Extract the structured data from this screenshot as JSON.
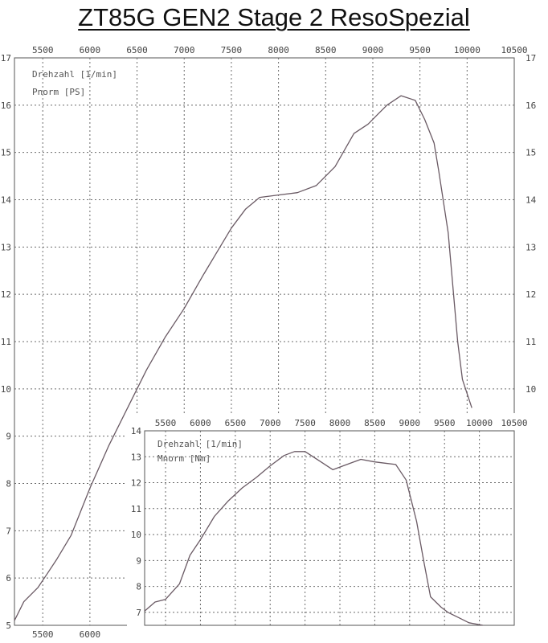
{
  "title": "ZT85G GEN2  Stage 2  ResoSpezial",
  "colors": {
    "curve": "#6a5a64",
    "grid": "#6b6b6b",
    "frame": "#555555",
    "tick_text": "#444444"
  },
  "chart_data": [
    {
      "type": "line",
      "xlabel": "",
      "ylabel": "",
      "legend": [
        "Drehzahl [1/min]",
        "Pnorm [PS]"
      ],
      "xlim": [
        5200,
        10500
      ],
      "ylim": [
        5,
        17
      ],
      "x_ticks": [
        "5500",
        "6000",
        "6500",
        "7000",
        "7500",
        "8000",
        "8500",
        "9000",
        "9500",
        "10000",
        "10500"
      ],
      "y_ticks": [
        "5",
        "6",
        "7",
        "8",
        "9",
        "10",
        "11",
        "12",
        "13",
        "14",
        "15",
        "16",
        "17"
      ],
      "grid": true,
      "series": [
        {
          "x": [
            5200,
            5300,
            5450,
            5550,
            5650,
            5800,
            6000,
            6200,
            6400,
            6600,
            6800,
            7000,
            7200,
            7350,
            7500,
            7650,
            7800,
            8000,
            8200,
            8400,
            8600,
            8800,
            8950,
            9050,
            9150,
            9300,
            9450,
            9550,
            9650,
            9700,
            9800,
            9900,
            9950,
            10000,
            10050
          ],
          "y": [
            5.1,
            5.5,
            5.8,
            6.1,
            6.4,
            6.9,
            7.9,
            8.8,
            9.6,
            10.4,
            11.1,
            11.7,
            12.4,
            12.9,
            13.4,
            13.8,
            14.05,
            14.1,
            14.15,
            14.3,
            14.7,
            15.4,
            15.6,
            15.8,
            16.0,
            16.2,
            16.1,
            15.7,
            15.2,
            14.6,
            13.3,
            11.0,
            10.2,
            9.9,
            9.6
          ]
        }
      ]
    },
    {
      "type": "line",
      "xlabel": "",
      "ylabel": "",
      "legend": [
        "Drehzahl [1/min]",
        "Mnorm [Nm]"
      ],
      "xlim": [
        5200,
        10500
      ],
      "ylim": [
        6.5,
        14
      ],
      "x_ticks": [
        "5500",
        "6000",
        "6500",
        "7000",
        "7500",
        "8000",
        "8500",
        "9000",
        "9500",
        "10000",
        "10500"
      ],
      "y_ticks": [
        "7",
        "8",
        "9",
        "10",
        "11",
        "12",
        "13",
        "14"
      ],
      "grid": true,
      "series": [
        {
          "x": [
            5200,
            5350,
            5500,
            5700,
            5850,
            6000,
            6200,
            6400,
            6600,
            6800,
            7000,
            7200,
            7350,
            7500,
            7700,
            7900,
            8100,
            8300,
            8500,
            8650,
            8800,
            8950,
            9100,
            9200,
            9300,
            9450,
            9550,
            9700,
            9850,
            10050
          ],
          "y": [
            7.05,
            7.4,
            7.5,
            8.1,
            9.2,
            9.8,
            10.7,
            11.3,
            11.8,
            12.2,
            12.65,
            13.05,
            13.2,
            13.2,
            12.85,
            12.5,
            12.7,
            12.9,
            12.8,
            12.75,
            12.7,
            12.1,
            10.5,
            9.0,
            7.6,
            7.2,
            7.0,
            6.8,
            6.6,
            6.5
          ]
        }
      ]
    }
  ]
}
